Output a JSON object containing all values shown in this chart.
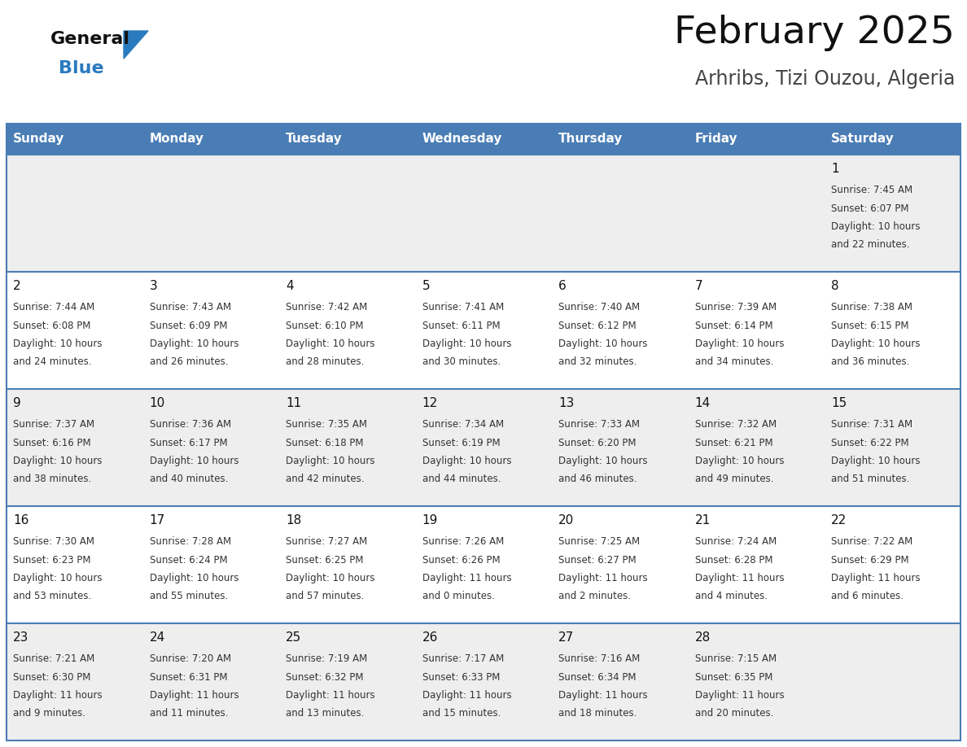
{
  "title": "February 2025",
  "subtitle": "Arhribs, Tizi Ouzou, Algeria",
  "days_of_week": [
    "Sunday",
    "Monday",
    "Tuesday",
    "Wednesday",
    "Thursday",
    "Friday",
    "Saturday"
  ],
  "header_bg": "#4a7db5",
  "header_text": "#ffffff",
  "row_bg_odd": "#eeeeee",
  "row_bg_even": "#ffffff",
  "cell_text_color": "#333333",
  "day_num_color": "#111111",
  "title_color": "#111111",
  "subtitle_color": "#444444",
  "general_black": "#111111",
  "general_blue": "#2a7abf",
  "logo_triangle_color": "#2a7abf",
  "border_color": "#4a7db5",
  "calendar_data": [
    [
      null,
      null,
      null,
      null,
      null,
      null,
      {
        "day": 1,
        "sunrise": "7:45 AM",
        "sunset": "6:07 PM",
        "daylight_line1": "Daylight: 10 hours",
        "daylight_line2": "and 22 minutes."
      }
    ],
    [
      {
        "day": 2,
        "sunrise": "7:44 AM",
        "sunset": "6:08 PM",
        "daylight_line1": "Daylight: 10 hours",
        "daylight_line2": "and 24 minutes."
      },
      {
        "day": 3,
        "sunrise": "7:43 AM",
        "sunset": "6:09 PM",
        "daylight_line1": "Daylight: 10 hours",
        "daylight_line2": "and 26 minutes."
      },
      {
        "day": 4,
        "sunrise": "7:42 AM",
        "sunset": "6:10 PM",
        "daylight_line1": "Daylight: 10 hours",
        "daylight_line2": "and 28 minutes."
      },
      {
        "day": 5,
        "sunrise": "7:41 AM",
        "sunset": "6:11 PM",
        "daylight_line1": "Daylight: 10 hours",
        "daylight_line2": "and 30 minutes."
      },
      {
        "day": 6,
        "sunrise": "7:40 AM",
        "sunset": "6:12 PM",
        "daylight_line1": "Daylight: 10 hours",
        "daylight_line2": "and 32 minutes."
      },
      {
        "day": 7,
        "sunrise": "7:39 AM",
        "sunset": "6:14 PM",
        "daylight_line1": "Daylight: 10 hours",
        "daylight_line2": "and 34 minutes."
      },
      {
        "day": 8,
        "sunrise": "7:38 AM",
        "sunset": "6:15 PM",
        "daylight_line1": "Daylight: 10 hours",
        "daylight_line2": "and 36 minutes."
      }
    ],
    [
      {
        "day": 9,
        "sunrise": "7:37 AM",
        "sunset": "6:16 PM",
        "daylight_line1": "Daylight: 10 hours",
        "daylight_line2": "and 38 minutes."
      },
      {
        "day": 10,
        "sunrise": "7:36 AM",
        "sunset": "6:17 PM",
        "daylight_line1": "Daylight: 10 hours",
        "daylight_line2": "and 40 minutes."
      },
      {
        "day": 11,
        "sunrise": "7:35 AM",
        "sunset": "6:18 PM",
        "daylight_line1": "Daylight: 10 hours",
        "daylight_line2": "and 42 minutes."
      },
      {
        "day": 12,
        "sunrise": "7:34 AM",
        "sunset": "6:19 PM",
        "daylight_line1": "Daylight: 10 hours",
        "daylight_line2": "and 44 minutes."
      },
      {
        "day": 13,
        "sunrise": "7:33 AM",
        "sunset": "6:20 PM",
        "daylight_line1": "Daylight: 10 hours",
        "daylight_line2": "and 46 minutes."
      },
      {
        "day": 14,
        "sunrise": "7:32 AM",
        "sunset": "6:21 PM",
        "daylight_line1": "Daylight: 10 hours",
        "daylight_line2": "and 49 minutes."
      },
      {
        "day": 15,
        "sunrise": "7:31 AM",
        "sunset": "6:22 PM",
        "daylight_line1": "Daylight: 10 hours",
        "daylight_line2": "and 51 minutes."
      }
    ],
    [
      {
        "day": 16,
        "sunrise": "7:30 AM",
        "sunset": "6:23 PM",
        "daylight_line1": "Daylight: 10 hours",
        "daylight_line2": "and 53 minutes."
      },
      {
        "day": 17,
        "sunrise": "7:28 AM",
        "sunset": "6:24 PM",
        "daylight_line1": "Daylight: 10 hours",
        "daylight_line2": "and 55 minutes."
      },
      {
        "day": 18,
        "sunrise": "7:27 AM",
        "sunset": "6:25 PM",
        "daylight_line1": "Daylight: 10 hours",
        "daylight_line2": "and 57 minutes."
      },
      {
        "day": 19,
        "sunrise": "7:26 AM",
        "sunset": "6:26 PM",
        "daylight_line1": "Daylight: 11 hours",
        "daylight_line2": "and 0 minutes."
      },
      {
        "day": 20,
        "sunrise": "7:25 AM",
        "sunset": "6:27 PM",
        "daylight_line1": "Daylight: 11 hours",
        "daylight_line2": "and 2 minutes."
      },
      {
        "day": 21,
        "sunrise": "7:24 AM",
        "sunset": "6:28 PM",
        "daylight_line1": "Daylight: 11 hours",
        "daylight_line2": "and 4 minutes."
      },
      {
        "day": 22,
        "sunrise": "7:22 AM",
        "sunset": "6:29 PM",
        "daylight_line1": "Daylight: 11 hours",
        "daylight_line2": "and 6 minutes."
      }
    ],
    [
      {
        "day": 23,
        "sunrise": "7:21 AM",
        "sunset": "6:30 PM",
        "daylight_line1": "Daylight: 11 hours",
        "daylight_line2": "and 9 minutes."
      },
      {
        "day": 24,
        "sunrise": "7:20 AM",
        "sunset": "6:31 PM",
        "daylight_line1": "Daylight: 11 hours",
        "daylight_line2": "and 11 minutes."
      },
      {
        "day": 25,
        "sunrise": "7:19 AM",
        "sunset": "6:32 PM",
        "daylight_line1": "Daylight: 11 hours",
        "daylight_line2": "and 13 minutes."
      },
      {
        "day": 26,
        "sunrise": "7:17 AM",
        "sunset": "6:33 PM",
        "daylight_line1": "Daylight: 11 hours",
        "daylight_line2": "and 15 minutes."
      },
      {
        "day": 27,
        "sunrise": "7:16 AM",
        "sunset": "6:34 PM",
        "daylight_line1": "Daylight: 11 hours",
        "daylight_line2": "and 18 minutes."
      },
      {
        "day": 28,
        "sunrise": "7:15 AM",
        "sunset": "6:35 PM",
        "daylight_line1": "Daylight: 11 hours",
        "daylight_line2": "and 20 minutes."
      },
      null
    ]
  ],
  "fig_width": 11.88,
  "fig_height": 9.18,
  "dpi": 100
}
